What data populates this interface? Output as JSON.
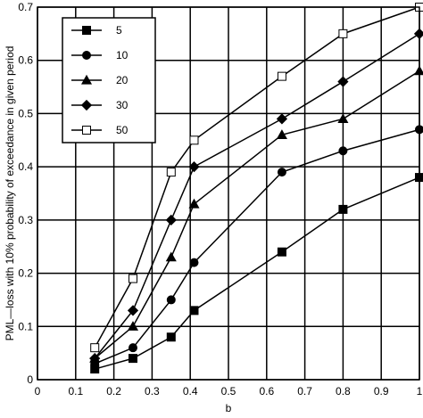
{
  "chart_data": {
    "type": "line",
    "xlabel": "b",
    "ylabel": "PML—loss with 10% probability of exceedance in given period",
    "xlim": [
      0,
      1
    ],
    "ylim": [
      0,
      0.7
    ],
    "x_ticks": [
      "0",
      "0.1",
      "0.2",
      "0.3",
      "0.4",
      "0.5",
      "0.6",
      "0.7",
      "0.8",
      "0.9",
      "1"
    ],
    "y_ticks": [
      "0",
      "0.1",
      "0.2",
      "0.3",
      "0.4",
      "0.5",
      "0.6",
      "0.7"
    ],
    "grid": true,
    "legend_position": "top-left",
    "series": [
      {
        "name": "5",
        "marker": "square-filled",
        "x": [
          0.15,
          0.25,
          0.35,
          0.41,
          0.64,
          0.8,
          1.0
        ],
        "y": [
          0.02,
          0.04,
          0.08,
          0.13,
          0.24,
          0.32,
          0.38
        ]
      },
      {
        "name": "10",
        "marker": "circle-filled",
        "x": [
          0.15,
          0.25,
          0.35,
          0.41,
          0.64,
          0.8,
          1.0
        ],
        "y": [
          0.03,
          0.06,
          0.15,
          0.22,
          0.39,
          0.43,
          0.47
        ]
      },
      {
        "name": "20",
        "marker": "triangle-filled",
        "x": [
          0.15,
          0.25,
          0.35,
          0.41,
          0.64,
          0.8,
          1.0
        ],
        "y": [
          0.04,
          0.1,
          0.23,
          0.33,
          0.46,
          0.49,
          0.58
        ]
      },
      {
        "name": "30",
        "marker": "diamond-filled",
        "x": [
          0.15,
          0.25,
          0.35,
          0.41,
          0.64,
          0.8,
          1.0
        ],
        "y": [
          0.04,
          0.13,
          0.3,
          0.4,
          0.49,
          0.56,
          0.65
        ]
      },
      {
        "name": "50",
        "marker": "square-open",
        "x": [
          0.15,
          0.25,
          0.35,
          0.41,
          0.64,
          0.8,
          1.0
        ],
        "y": [
          0.06,
          0.19,
          0.39,
          0.45,
          0.57,
          0.65,
          0.7
        ]
      }
    ]
  }
}
